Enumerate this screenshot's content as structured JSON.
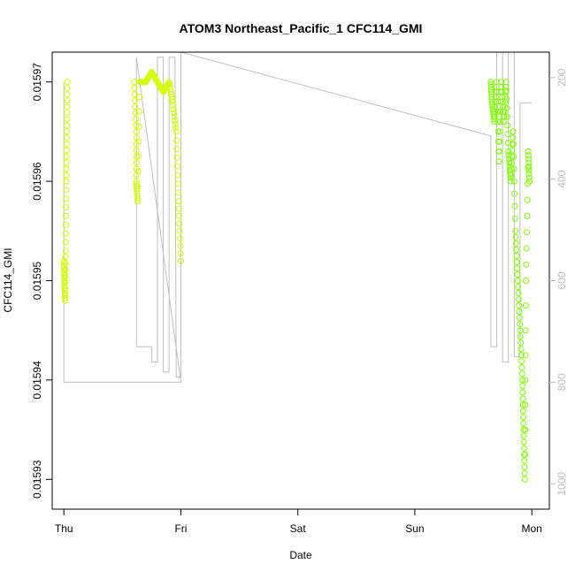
{
  "chart_data": {
    "type": "scatter",
    "title": "ATOM3 Northeast_Pacific_1 CFC114_GMI",
    "xlabel": "Date",
    "ylabel": "CFC114_GMI",
    "x_ticks": [
      "Thu",
      "Fri",
      "Sat",
      "Sun",
      "Mon"
    ],
    "y_ticks": [
      "0.01593",
      "0.01594",
      "0.01595",
      "0.01596",
      "0.01597"
    ],
    "y2_ticks": [
      "200",
      "400",
      "600",
      "800",
      "1000"
    ],
    "xlim_days": [
      -0.1,
      4.15
    ],
    "ylim": [
      0.015927,
      0.015973
    ],
    "y2lim": [
      1050,
      150
    ],
    "grid": false,
    "colors": {
      "series_yellow": "#d4ff00",
      "series_green": "#7fff00",
      "pressure_line": "#bebebe",
      "axis": "#000000",
      "secondary_axis": "#bebebe"
    },
    "series": [
      {
        "color_key": "series_yellow",
        "segments": [
          {
            "from": 0.0,
            "to": 0.03,
            "points": [
              [
                0.0,
                0.015952
              ],
              [
                0.005,
                0.01595
              ],
              [
                0.01,
                0.015948
              ],
              [
                0.015,
                0.015953
              ],
              [
                0.02,
                0.01596
              ],
              [
                0.025,
                0.015965
              ],
              [
                0.03,
                0.01597
              ]
            ]
          },
          {
            "from": 0.6,
            "to": 1.0,
            "points": [
              [
                0.6,
                0.01597
              ],
              [
                0.62,
                0.015965
              ],
              [
                0.62,
                0.01596
              ],
              [
                0.63,
                0.015958
              ],
              [
                0.65,
                0.01597
              ],
              [
                0.7,
                0.01597
              ],
              [
                0.75,
                0.015971
              ],
              [
                0.8,
                0.01597
              ],
              [
                0.85,
                0.015969
              ],
              [
                0.9,
                0.01597
              ],
              [
                0.93,
                0.015968
              ],
              [
                0.96,
                0.015965
              ],
              [
                0.98,
                0.015958
              ],
              [
                1.0,
                0.015952
              ]
            ]
          }
        ]
      },
      {
        "color_key": "series_green",
        "segments": [
          {
            "from": 3.65,
            "to": 4.0,
            "points": [
              [
                3.65,
                0.01597
              ],
              [
                3.66,
                0.015968
              ],
              [
                3.68,
                0.015966
              ],
              [
                3.7,
                0.01597
              ],
              [
                3.72,
                0.015962
              ],
              [
                3.74,
                0.01597
              ],
              [
                3.76,
                0.015966
              ],
              [
                3.78,
                0.01597
              ],
              [
                3.8,
                0.015963
              ],
              [
                3.82,
                0.01596
              ],
              [
                3.84,
                0.015965
              ],
              [
                3.86,
                0.015955
              ],
              [
                3.88,
                0.01595
              ],
              [
                3.9,
                0.015945
              ],
              [
                3.92,
                0.01594
              ],
              [
                3.93,
                0.015935
              ],
              [
                3.94,
                0.01593
              ],
              [
                3.95,
                0.01595
              ],
              [
                3.97,
                0.015963
              ],
              [
                3.98,
                0.01596
              ]
            ]
          }
        ]
      }
    ],
    "pressure_line": [
      [
        0.0,
        210
      ],
      [
        0.0,
        800
      ],
      [
        0.05,
        800
      ],
      [
        1.0,
        800
      ],
      [
        0.62,
        160
      ],
      [
        0.62,
        730
      ],
      [
        0.75,
        730
      ],
      [
        0.75,
        760
      ],
      [
        0.8,
        760
      ],
      [
        0.8,
        160
      ],
      [
        0.85,
        160
      ],
      [
        0.85,
        780
      ],
      [
        0.9,
        780
      ],
      [
        0.9,
        160
      ],
      [
        0.95,
        160
      ],
      [
        0.96,
        790
      ],
      [
        1.0,
        790
      ],
      [
        1.0,
        140
      ],
      [
        3.65,
        315
      ],
      [
        3.65,
        730
      ],
      [
        3.7,
        730
      ],
      [
        3.7,
        150
      ],
      [
        3.75,
        150
      ],
      [
        3.75,
        760
      ],
      [
        3.8,
        760
      ],
      [
        3.8,
        150
      ],
      [
        3.85,
        150
      ],
      [
        3.85,
        750
      ],
      [
        3.9,
        750
      ],
      [
        3.9,
        250
      ],
      [
        4.0,
        250
      ]
    ]
  }
}
